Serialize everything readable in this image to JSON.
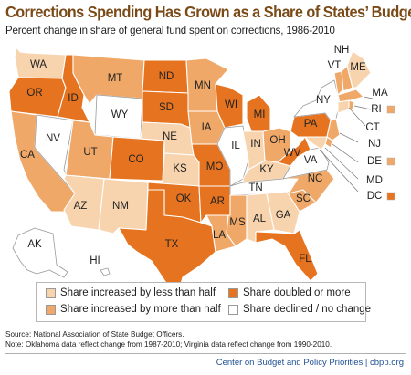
{
  "title": "Corrections Spending Has Grown as a Share of States’ Budgets",
  "subtitle": "Percent change in share of general fund spent on corrections, 1986-2010",
  "colors": {
    "lt_half": "#f7d4ae",
    "gt_half": "#f0a868",
    "doubled": "#e5731f",
    "declined": "#ffffff"
  },
  "legend": [
    {
      "key": "lt_half",
      "label": "Share increased by less than half"
    },
    {
      "key": "gt_half",
      "label": "Share increased by more than half"
    },
    {
      "key": "doubled",
      "label": "Share doubled or more"
    },
    {
      "key": "declined",
      "label": "Share declined / no change"
    }
  ],
  "states": {
    "WA": "lt_half",
    "OR": "doubled",
    "CA": "gt_half",
    "ID": "doubled",
    "NV": "declined",
    "MT": "gt_half",
    "WY": "declined",
    "UT": "gt_half",
    "CO": "doubled",
    "AZ": "lt_half",
    "NM": "lt_half",
    "ND": "doubled",
    "SD": "doubled",
    "NE": "lt_half",
    "KS": "lt_half",
    "OK": "doubled",
    "TX": "doubled",
    "MN": "gt_half",
    "IA": "gt_half",
    "MO": "doubled",
    "AR": "doubled",
    "LA": "gt_half",
    "WI": "doubled",
    "IL": "declined",
    "MI": "doubled",
    "IN": "lt_half",
    "OH": "gt_half",
    "KY": "lt_half",
    "TN": "declined",
    "MS": "gt_half",
    "AL": "lt_half",
    "GA": "lt_half",
    "FL": "doubled",
    "SC": "gt_half",
    "NC": "gt_half",
    "VA": "declined",
    "WV": "doubled",
    "PA": "doubled",
    "NY": "declined",
    "VT": "gt_half",
    "NH": "gt_half",
    "ME": "lt_half",
    "MA": "gt_half",
    "RI": "gt_half",
    "CT": "lt_half",
    "NJ": "gt_half",
    "DE": "gt_half",
    "MD": "lt_half",
    "DC": "doubled",
    "AK": "declined",
    "HI": "declined"
  },
  "labels": {
    "WA": "WA",
    "OR": "OR",
    "CA": "CA",
    "ID": "ID",
    "NV": "NV",
    "MT": "MT",
    "WY": "WY",
    "UT": "UT",
    "CO": "CO",
    "AZ": "AZ",
    "NM": "NM",
    "ND": "ND",
    "SD": "SD",
    "NE": "NE",
    "KS": "KS",
    "OK": "OK",
    "TX": "TX",
    "MN": "MN",
    "IA": "IA",
    "MO": "MO",
    "AR": "AR",
    "LA": "LA",
    "WI": "WI",
    "IL": "IL",
    "MI": "MI",
    "IN": "IN",
    "OH": "OH",
    "KY": "KY",
    "TN": "TN",
    "MS": "MS",
    "AL": "AL",
    "GA": "GA",
    "FL": "FL",
    "SC": "SC",
    "NC": "NC",
    "VA": "VA",
    "WV": "WV",
    "PA": "PA",
    "NY": "NY",
    "VT": "VT",
    "NH": "NH",
    "ME": "ME",
    "MA": "MA",
    "RI": "RI",
    "CT": "CT",
    "NJ": "NJ",
    "DE": "DE",
    "MD": "MD",
    "DC": "DC",
    "AK": "AK",
    "HI": "HI"
  },
  "source": "Source: National Association of State Budget Officers.",
  "note": "Note: Oklahoma data reflect change from 1987-2010; Virginia data reflect change from 1990-2010.",
  "footer": "Center on Budget and Policy Priorities | cbpp.org"
}
